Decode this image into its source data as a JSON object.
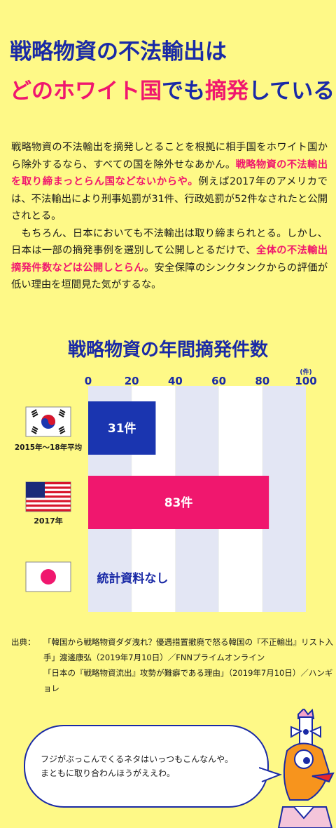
{
  "title": {
    "line1": "戦略物資の不法輸出は",
    "line2_a": "どの",
    "line2_b": "ホワイト国",
    "line2_c": "でも",
    "line2_d": "摘発",
    "line2_e": "している"
  },
  "body": {
    "p1_a": "戦略物資の不法輸出を摘発しとることを根拠に相手国をホワイト国から除外するなら、すべての国を除外せなあかん。",
    "p1_hl": "戦略物資の不法輸出を取り締まっとらん国などないからや。",
    "p1_b": "例えば2017年のアメリカでは、不法輸出により刑事処罰が31件、行政処罰が52件なされたと公開されとる。",
    "p2_a": "もちろん、日本においても不法輸出は取り締まられとる。しかし、日本は一部の摘発事例を選別して公開しとるだけで、",
    "p2_hl": "全体の不法輸出摘発件数などは公開しとらん",
    "p2_b": "。安全保障のシンクタンクからの評価が低い理由を垣間見た気がするな。"
  },
  "chart_data": {
    "type": "bar",
    "orientation": "horizontal",
    "title": "戦略物資の年間摘発件数",
    "unit": "(件)",
    "xlim": [
      0,
      100
    ],
    "ticks": [
      0,
      20,
      40,
      60,
      80,
      100
    ],
    "categories": [
      "2015年〜18年平均",
      "2017年",
      ""
    ],
    "countries": [
      "South Korea",
      "USA",
      "Japan"
    ],
    "values": [
      31,
      83,
      null
    ],
    "data_labels": [
      "31件",
      "83件",
      "統計資料なし"
    ],
    "colors": [
      "#1a35b0",
      "#f0176e",
      "#1a2aa6"
    ],
    "background_bands": [
      "#e3e6f4",
      "#ffffff"
    ]
  },
  "source": {
    "label": "出典：",
    "line1": "「韓国から戦略物資ダダ洩れ？優遇措置撤廃で怒る韓国の『不正輸出』リスト入手」渡邊康弘（2019年7月10日）／FNNプライムオンライン",
    "line2": "「日本の『戦略物資流出』攻勢が難癖である理由」（2019年7月10日）／ハンギョレ"
  },
  "bubble": {
    "line1": "フジがぶっこんでくるネタはいっつもこんなんや。",
    "line2": "まともに取り合わんほうがええわ。"
  }
}
